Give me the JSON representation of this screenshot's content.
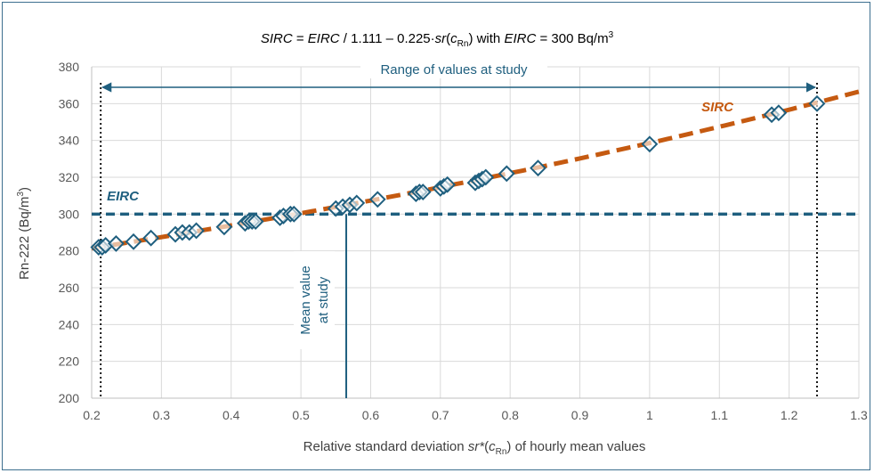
{
  "chart_data": {
    "type": "scatter",
    "title": "SIRC = EIRC / 1.111 – 0.225·sr(cRn)   with EIRC = 300 Bq/m³",
    "title_parts": {
      "a": "SIRC",
      "b": " = ",
      "c": "EIRC",
      "d": " / 1.111 – 0.225·",
      "e": "sr",
      "f": "(",
      "g": "c",
      "h": "Rn",
      "i": ")    with ",
      "j": "EIRC",
      "k": " = 300 Bq/m",
      "l": "3"
    },
    "xlabel_parts": {
      "a": "Relative standard deviation ",
      "b": "sr*",
      "c": "(",
      "d": "c",
      "e": "Rn",
      "f": ") of hourly mean values"
    },
    "ylabel_parts": {
      "a": "Rn-222 (Bq/m",
      "b": "3",
      "c": ")"
    },
    "xlim": [
      0.2,
      1.3
    ],
    "ylim": [
      200,
      380
    ],
    "xticks": [
      0.2,
      0.3,
      0.4,
      0.5,
      0.6,
      0.7,
      0.8,
      0.9,
      1.0,
      1.1,
      1.2,
      1.3
    ],
    "xtick_labels": [
      "0.2",
      "0.3",
      "0.4",
      "0.5",
      "0.6",
      "0.7",
      "0.8",
      "0.9",
      "1",
      "1.1",
      "1.2",
      "1.3"
    ],
    "yticks": [
      200,
      220,
      240,
      260,
      280,
      300,
      320,
      340,
      360,
      380
    ],
    "ytick_labels": [
      "200",
      "220",
      "240",
      "260",
      "280",
      "300",
      "320",
      "340",
      "360",
      "380"
    ],
    "grid": true,
    "series": [
      {
        "name": "",
        "marker": "diamond-open",
        "color": "#1f5f7f",
        "points": [
          [
            0.21,
            282
          ],
          [
            0.215,
            282
          ],
          [
            0.22,
            283
          ],
          [
            0.235,
            284
          ],
          [
            0.26,
            285
          ],
          [
            0.285,
            287
          ],
          [
            0.32,
            289
          ],
          [
            0.33,
            290
          ],
          [
            0.34,
            290
          ],
          [
            0.35,
            291
          ],
          [
            0.39,
            293
          ],
          [
            0.42,
            295
          ],
          [
            0.425,
            296
          ],
          [
            0.43,
            296
          ],
          [
            0.435,
            296
          ],
          [
            0.47,
            298
          ],
          [
            0.475,
            299
          ],
          [
            0.485,
            300
          ],
          [
            0.49,
            300
          ],
          [
            0.55,
            303
          ],
          [
            0.56,
            304
          ],
          [
            0.57,
            305
          ],
          [
            0.58,
            306
          ],
          [
            0.61,
            308
          ],
          [
            0.665,
            311
          ],
          [
            0.67,
            312
          ],
          [
            0.675,
            312
          ],
          [
            0.7,
            314
          ],
          [
            0.705,
            315
          ],
          [
            0.71,
            316
          ],
          [
            0.75,
            317
          ],
          [
            0.755,
            318
          ],
          [
            0.76,
            319
          ],
          [
            0.765,
            320
          ],
          [
            0.795,
            322
          ],
          [
            0.84,
            325
          ],
          [
            1.0,
            338
          ],
          [
            1.175,
            354
          ],
          [
            1.185,
            355
          ],
          [
            1.24,
            360
          ]
        ]
      }
    ],
    "curve": {
      "name": "SIRC",
      "color": "#c55a11",
      "style": "dashed",
      "formula": "300 / (1.111 - 0.225*x)",
      "x_range": [
        0.2,
        1.3
      ]
    },
    "hline": {
      "name": "EIRC",
      "y": 300,
      "color": "#1f5f7f",
      "style": "dashed"
    },
    "range_lines": [
      0.213,
      1.24
    ],
    "range_label": "Range of values at study",
    "mean_line_x": 0.565,
    "mean_label_line1": "Mean value",
    "mean_label_line2": "at study",
    "sirc_label": "SIRC",
    "eirc_label": "EIRC"
  }
}
